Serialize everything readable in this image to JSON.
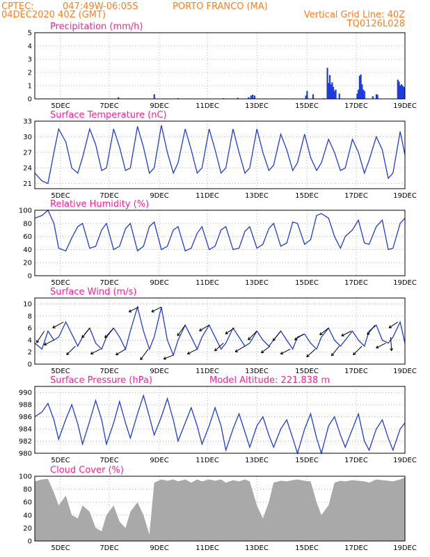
{
  "header": {
    "source": "CPTEC:",
    "coords": "047:49W-06:05S",
    "location": "PORTO FRANCO (MA)",
    "run": "04DEC2020 40Z (GMT)",
    "grid_note": "Vertical Grid Line: 40Z",
    "code": "TQ0126L028",
    "model_altitude": "Model Altitude: 221.838 m"
  },
  "colors": {
    "series": "#1e3cd7",
    "cloud": "#a9a9a9",
    "header": "#ff7f1e",
    "title": "#ff1e9b"
  },
  "chart_data": [
    {
      "type": "bar",
      "title": "Precipitation (mm/h)",
      "ylim": [
        0,
        5
      ],
      "yticks": [
        "0",
        "1",
        "2",
        "3",
        "4",
        "5"
      ],
      "xticks": [
        "5DEC",
        "7DEC",
        "9DEC",
        "11DEC",
        "13DEC",
        "15DEC",
        "17DEC",
        "19DEC"
      ],
      "xlim": [
        0,
        15.5
      ],
      "bars": [
        [
          3.5,
          0.12
        ],
        [
          5.0,
          0.35
        ],
        [
          6.0,
          0.05
        ],
        [
          7.9,
          0.05
        ],
        [
          8.5,
          0.08
        ],
        [
          8.95,
          0.12
        ],
        [
          9.05,
          0.25
        ],
        [
          9.12,
          0.32
        ],
        [
          9.2,
          0.25
        ],
        [
          11.35,
          0.25
        ],
        [
          11.4,
          0.6
        ],
        [
          11.65,
          0.35
        ],
        [
          12.1,
          0.05
        ],
        [
          12.25,
          2.35
        ],
        [
          12.3,
          1.2
        ],
        [
          12.35,
          1.8
        ],
        [
          12.4,
          1.1
        ],
        [
          12.45,
          1.25
        ],
        [
          12.5,
          0.9
        ],
        [
          12.55,
          0.6
        ],
        [
          12.6,
          0.7
        ],
        [
          12.75,
          0.4
        ],
        [
          13.5,
          0.4
        ],
        [
          13.55,
          0.7
        ],
        [
          13.6,
          1.75
        ],
        [
          13.65,
          1.85
        ],
        [
          13.7,
          1.1
        ],
        [
          13.75,
          0.7
        ],
        [
          13.8,
          0.6
        ],
        [
          14.15,
          0.2
        ],
        [
          14.3,
          0.35
        ],
        [
          14.35,
          0.3
        ],
        [
          15.2,
          1.45
        ],
        [
          15.25,
          1.3
        ],
        [
          15.3,
          1.0
        ],
        [
          15.35,
          1.1
        ],
        [
          15.4,
          1.0
        ],
        [
          15.45,
          0.9
        ]
      ]
    },
    {
      "type": "line",
      "title": "Surface Temperature (nC)",
      "ylim": [
        20,
        33
      ],
      "yticks": [
        "21",
        "24",
        "27",
        "30",
        "33"
      ],
      "xticks": [
        "5DEC",
        "7DEC",
        "9DEC",
        "11DEC",
        "13DEC",
        "15DEC",
        "17DEC",
        "19DEC"
      ],
      "xlim": [
        0,
        15.5
      ],
      "x": [
        0,
        0.3,
        0.55,
        0.8,
        1.0,
        1.3,
        1.55,
        1.8,
        2.0,
        2.3,
        2.55,
        2.8,
        3.0,
        3.3,
        3.55,
        3.8,
        4.0,
        4.3,
        4.55,
        4.8,
        5.0,
        5.3,
        5.55,
        5.8,
        6.0,
        6.3,
        6.55,
        6.8,
        7.0,
        7.3,
        7.55,
        7.8,
        8.0,
        8.3,
        8.55,
        8.8,
        9.0,
        9.3,
        9.55,
        9.8,
        10.0,
        10.3,
        10.55,
        10.8,
        11.0,
        11.3,
        11.55,
        11.8,
        12.0,
        12.3,
        12.55,
        12.8,
        13.0,
        13.3,
        13.55,
        13.8,
        14.0,
        14.3,
        14.55,
        14.8,
        15.0,
        15.3,
        15.5
      ],
      "y": [
        23,
        21.5,
        21,
        27,
        31.5,
        29,
        24,
        23,
        26,
        31.5,
        28.5,
        23.5,
        24,
        31.5,
        28,
        23.5,
        24,
        32,
        28,
        23,
        24,
        32.2,
        27,
        23,
        25,
        31.5,
        27.5,
        23,
        24,
        31.5,
        27.5,
        23,
        24,
        31.5,
        27,
        23,
        24,
        31.5,
        27,
        23.5,
        24.5,
        30.5,
        27.5,
        23.5,
        25,
        30.5,
        26,
        23.5,
        25,
        29.5,
        27,
        23.5,
        24,
        29.5,
        27,
        23,
        25.5,
        30,
        27.5,
        22,
        23,
        31,
        26.5
      ]
    },
    {
      "type": "line",
      "title": "Relative Humidity (%)",
      "ylim": [
        0,
        100
      ],
      "yticks": [
        "0",
        "20",
        "40",
        "60",
        "80",
        "100"
      ],
      "xticks": [
        "5DEC",
        "7DEC",
        "9DEC",
        "11DEC",
        "13DEC",
        "15DEC",
        "17DEC",
        "19DEC"
      ],
      "xlim": [
        0,
        15.5
      ],
      "x": [
        0,
        0.3,
        0.55,
        0.8,
        1.0,
        1.3,
        1.55,
        1.8,
        2.0,
        2.3,
        2.55,
        2.8,
        3.0,
        3.3,
        3.55,
        3.8,
        4.0,
        4.3,
        4.55,
        4.8,
        5.0,
        5.3,
        5.55,
        5.8,
        6.0,
        6.3,
        6.55,
        6.8,
        7.0,
        7.3,
        7.55,
        7.8,
        8.0,
        8.3,
        8.55,
        8.8,
        9.0,
        9.3,
        9.55,
        9.8,
        10.0,
        10.3,
        10.55,
        10.8,
        11.0,
        11.3,
        11.55,
        11.8,
        12.0,
        12.3,
        12.55,
        12.8,
        13.0,
        13.3,
        13.55,
        13.8,
        14.0,
        14.3,
        14.55,
        14.8,
        15.0,
        15.3,
        15.5
      ],
      "y": [
        88,
        92,
        100,
        80,
        42,
        38,
        58,
        75,
        80,
        42,
        45,
        70,
        80,
        40,
        45,
        72,
        80,
        38,
        45,
        75,
        82,
        40,
        45,
        70,
        75,
        38,
        42,
        65,
        75,
        40,
        45,
        70,
        75,
        40,
        42,
        68,
        75,
        42,
        48,
        72,
        80,
        45,
        50,
        82,
        80,
        48,
        55,
        92,
        95,
        88,
        60,
        42,
        60,
        70,
        85,
        50,
        48,
        75,
        85,
        40,
        42,
        80,
        88
      ]
    },
    {
      "type": "line",
      "title": "Surface Wind (m/s)",
      "ylim": [
        0,
        11
      ],
      "yticks": [
        "0",
        "2",
        "4",
        "6",
        "8",
        "10"
      ],
      "xticks": [
        "5DEC",
        "7DEC",
        "9DEC",
        "11DEC",
        "13DEC",
        "15DEC",
        "17DEC",
        "19DEC"
      ],
      "xlim": [
        0,
        15.5
      ],
      "x": [
        0,
        0.3,
        0.55,
        0.8,
        1.0,
        1.3,
        1.55,
        1.8,
        2.0,
        2.3,
        2.55,
        2.8,
        3.0,
        3.3,
        3.55,
        3.8,
        4.0,
        4.3,
        4.55,
        4.8,
        5.0,
        5.3,
        5.55,
        5.8,
        6.0,
        6.3,
        6.55,
        6.8,
        7.0,
        7.3,
        7.55,
        7.8,
        8.0,
        8.3,
        8.55,
        8.8,
        9.0,
        9.3,
        9.55,
        9.8,
        10.0,
        10.3,
        10.55,
        10.8,
        11.0,
        11.3,
        11.55,
        11.8,
        12.0,
        12.3,
        12.55,
        12.8,
        13.0,
        13.3,
        13.55,
        13.8,
        14.0,
        14.3,
        14.55,
        14.8,
        15.0,
        15.3,
        15.5
      ],
      "y": [
        3.5,
        2.5,
        5.5,
        4.0,
        4.5,
        7.0,
        5.0,
        3.0,
        4.5,
        6.0,
        3.5,
        2.5,
        4.5,
        6.0,
        4.5,
        2.5,
        5.5,
        9.5,
        5.5,
        2.5,
        4.5,
        9.5,
        4.0,
        1.5,
        4.0,
        6.5,
        4.5,
        2.5,
        4.5,
        6.5,
        4.5,
        2.5,
        3.5,
        6.0,
        4.5,
        3.0,
        3.5,
        5.5,
        4.0,
        3.0,
        4.0,
        5.5,
        4.0,
        2.5,
        4.5,
        5.0,
        3.5,
        2.5,
        4.5,
        6.0,
        4.0,
        3.0,
        4.0,
        5.5,
        4.0,
        3.0,
        5.5,
        6.5,
        4.0,
        3.5,
        4.5,
        7.0,
        3.5
      ],
      "arrows": [
        [
          0.4,
          -0.8,
          -1.2
        ],
        [
          0.8,
          -1.0,
          -0.5
        ],
        [
          1.2,
          -1.1,
          -0.6
        ],
        [
          1.7,
          -0.9,
          -0.9
        ],
        [
          2.3,
          -0.8,
          -1.0
        ],
        [
          2.75,
          -1.0,
          -0.5
        ],
        [
          3.3,
          -0.9,
          -1.0
        ],
        [
          3.8,
          -1.0,
          -0.6
        ],
        [
          4.35,
          -1.0,
          -0.5
        ],
        [
          4.75,
          -0.8,
          -1.1
        ],
        [
          5.3,
          -1.0,
          -0.5
        ],
        [
          5.8,
          -1.0,
          -0.4
        ],
        [
          6.3,
          -0.8,
          -1.1
        ],
        [
          6.8,
          -1.0,
          -0.5
        ],
        [
          7.3,
          -1.0,
          -0.6
        ],
        [
          7.9,
          -0.9,
          -0.8
        ],
        [
          8.35,
          -0.9,
          -0.6
        ],
        [
          8.8,
          -1.0,
          -0.6
        ],
        [
          9.3,
          -0.9,
          -0.9
        ],
        [
          9.85,
          -0.9,
          -0.7
        ],
        [
          10.3,
          -0.8,
          -1.0
        ],
        [
          10.7,
          -1.0,
          -0.5
        ],
        [
          11.25,
          -0.9,
          -0.6
        ],
        [
          11.75,
          -0.9,
          -0.8
        ],
        [
          12.3,
          -0.9,
          -0.7
        ],
        [
          12.75,
          -0.8,
          -1.0
        ],
        [
          13.25,
          -1.0,
          -0.5
        ],
        [
          13.7,
          -0.9,
          -0.9
        ],
        [
          14.25,
          -0.8,
          -1.0
        ],
        [
          14.7,
          -1.0,
          -0.5
        ],
        [
          15.2,
          -0.9,
          -0.6
        ],
        [
          14.9,
          0.1,
          -1.4
        ]
      ]
    },
    {
      "type": "line",
      "title": "Surface Pressure (hPa)",
      "ylim": [
        980,
        991
      ],
      "yticks": [
        "980",
        "982",
        "984",
        "986",
        "988",
        "990"
      ],
      "xticks": [
        "5DEC",
        "7DEC",
        "9DEC",
        "11DEC",
        "13DEC",
        "15DEC",
        "17DEC",
        "19DEC"
      ],
      "xlim": [
        0,
        15.5
      ],
      "x": [
        0,
        0.3,
        0.55,
        0.8,
        1.0,
        1.3,
        1.55,
        1.8,
        2.0,
        2.3,
        2.55,
        2.8,
        3.0,
        3.3,
        3.55,
        3.8,
        4.0,
        4.3,
        4.55,
        4.8,
        5.0,
        5.3,
        5.55,
        5.8,
        6.0,
        6.3,
        6.55,
        6.8,
        7.0,
        7.3,
        7.55,
        7.8,
        8.0,
        8.3,
        8.55,
        8.8,
        9.0,
        9.3,
        9.55,
        9.8,
        10.0,
        10.3,
        10.55,
        10.8,
        11.0,
        11.3,
        11.55,
        11.8,
        12.0,
        12.3,
        12.55,
        12.8,
        13.0,
        13.3,
        13.55,
        13.8,
        14.0,
        14.3,
        14.55,
        14.8,
        15.0,
        15.3,
        15.5
      ],
      "y": [
        986,
        986.8,
        988.2,
        985.5,
        982.3,
        985.6,
        988,
        984.8,
        981.5,
        985.3,
        988.7,
        985.5,
        981.5,
        985,
        988.5,
        985,
        982.5,
        986.5,
        989.5,
        986,
        983,
        986,
        989,
        985.5,
        982,
        985,
        987.5,
        984.5,
        981.5,
        984.5,
        987.5,
        984.5,
        980.5,
        984,
        986.5,
        983.5,
        981,
        984.5,
        986,
        983,
        981,
        984,
        985.5,
        982.5,
        980,
        984,
        986.5,
        982.5,
        980,
        984.5,
        986,
        983,
        981,
        984,
        986.5,
        982,
        980.5,
        984,
        985.5,
        982.5,
        980.5,
        984,
        985
      ]
    },
    {
      "type": "area",
      "title": "Cloud Cover (%)",
      "ylim": [
        0,
        100
      ],
      "yticks": [
        "0",
        "20",
        "40",
        "60",
        "80",
        "100"
      ],
      "xticks": [
        "5DEC",
        "7DEC",
        "9DEC",
        "11DEC",
        "13DEC",
        "15DEC",
        "17DEC",
        "19DEC"
      ],
      "xlim": [
        0,
        15.5
      ],
      "x": [
        0,
        0.3,
        0.55,
        0.8,
        1.0,
        1.3,
        1.55,
        1.8,
        2.0,
        2.3,
        2.55,
        2.8,
        3.0,
        3.3,
        3.55,
        3.8,
        4.0,
        4.3,
        4.55,
        4.8,
        5.0,
        5.3,
        5.55,
        5.8,
        6.0,
        6.3,
        6.55,
        6.8,
        7.0,
        7.3,
        7.55,
        7.8,
        8.0,
        8.3,
        8.55,
        8.8,
        9.0,
        9.3,
        9.55,
        9.8,
        10.0,
        10.3,
        10.55,
        10.8,
        11.0,
        11.3,
        11.55,
        11.8,
        12.0,
        12.3,
        12.55,
        12.8,
        13.0,
        13.3,
        13.55,
        13.8,
        14.0,
        14.3,
        14.55,
        14.8,
        15.0,
        15.3,
        15.5
      ],
      "y": [
        92,
        95,
        96,
        75,
        55,
        70,
        40,
        35,
        55,
        45,
        20,
        15,
        40,
        55,
        30,
        20,
        45,
        60,
        40,
        10,
        90,
        95,
        93,
        95,
        92,
        95,
        90,
        95,
        92,
        95,
        93,
        95,
        90,
        94,
        92,
        95,
        92,
        55,
        35,
        60,
        90,
        93,
        92,
        94,
        95,
        93,
        92,
        60,
        40,
        55,
        90,
        93,
        92,
        94,
        93,
        92,
        90,
        95,
        94,
        93,
        92,
        95,
        98
      ]
    }
  ]
}
